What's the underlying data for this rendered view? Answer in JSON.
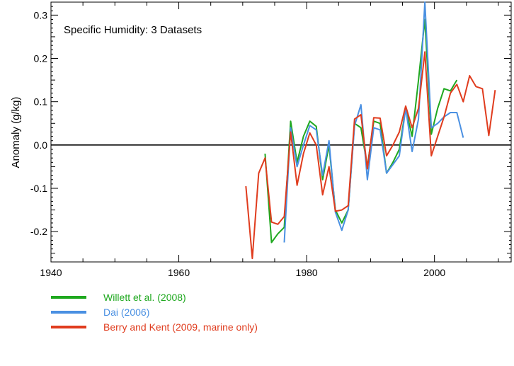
{
  "chart_data": {
    "type": "line",
    "title": "Specific Humidity: 3 Datasets",
    "xlabel": "",
    "ylabel": "Anomaly (g/kg)",
    "xlim": [
      1940,
      2012
    ],
    "ylim": [
      -0.27,
      0.33
    ],
    "xticks": [
      1940,
      1960,
      1980,
      2000
    ],
    "yticks": [
      -0.2,
      -0.1,
      0.0,
      0.1,
      0.2,
      0.3
    ],
    "ytick_labels": [
      "-0.2",
      "-0.1",
      "0.0",
      "0.1",
      "0.2",
      "0.3"
    ],
    "zero_line": true,
    "grid": false,
    "series": [
      {
        "name": "Willett et al. (2008)",
        "color": "#1fa81f",
        "x": [
          1973.5,
          1974.5,
          1975.5,
          1976.5,
          1977.5,
          1978.5,
          1979.5,
          1980.5,
          1981.5,
          1982.5,
          1983.5,
          1984.5,
          1985.5,
          1986.5,
          1987.5,
          1988.5,
          1989.5,
          1990.5,
          1991.5,
          1992.5,
          1993.5,
          1994.5,
          1995.5,
          1996.5,
          1997.5,
          1998.5,
          1999.5,
          2000.5,
          2001.5,
          2002.5,
          2003.5
        ],
        "y": [
          -0.02,
          -0.225,
          -0.205,
          -0.19,
          0.055,
          -0.04,
          0.02,
          0.055,
          0.043,
          -0.08,
          0.0,
          -0.15,
          -0.18,
          -0.15,
          0.05,
          0.04,
          -0.05,
          0.055,
          0.05,
          -0.065,
          -0.04,
          -0.01,
          0.085,
          0.02,
          0.15,
          0.29,
          0.025,
          0.085,
          0.13,
          0.125,
          0.15
        ]
      },
      {
        "name": "Dai (2006)",
        "color": "#4a90e2",
        "x": [
          1976.5,
          1977.5,
          1978.5,
          1979.5,
          1980.5,
          1981.5,
          1982.5,
          1983.5,
          1984.5,
          1985.5,
          1986.5,
          1987.5,
          1988.5,
          1989.5,
          1990.5,
          1991.5,
          1992.5,
          1993.5,
          1994.5,
          1995.5,
          1996.5,
          1997.5,
          1998.5,
          1999.5,
          2000.5,
          2001.5,
          2002.5,
          2003.5,
          2004.5
        ],
        "y": [
          -0.225,
          0.04,
          -0.05,
          0.0,
          0.045,
          0.035,
          -0.07,
          0.01,
          -0.155,
          -0.197,
          -0.15,
          0.045,
          0.093,
          -0.08,
          0.04,
          0.035,
          -0.065,
          -0.045,
          -0.025,
          0.085,
          -0.015,
          0.06,
          0.33,
          0.04,
          0.05,
          0.065,
          0.075,
          0.075,
          0.017
        ]
      },
      {
        "name": "Berry and Kent (2009, marine only)",
        "color": "#e03c1e",
        "x": [
          1970.5,
          1971.5,
          1972.5,
          1973.5,
          1974.5,
          1975.5,
          1976.5,
          1977.5,
          1978.5,
          1979.5,
          1980.5,
          1981.5,
          1982.5,
          1983.5,
          1984.5,
          1985.5,
          1986.5,
          1987.5,
          1988.5,
          1989.5,
          1990.5,
          1991.5,
          1992.5,
          1993.5,
          1994.5,
          1995.5,
          1996.5,
          1997.5,
          1998.5,
          1999.5,
          2000.5,
          2001.5,
          2002.5,
          2003.5,
          2004.5,
          2005.5,
          2006.5,
          2007.5,
          2008.5,
          2009.5
        ],
        "y": [
          -0.095,
          -0.262,
          -0.065,
          -0.03,
          -0.178,
          -0.183,
          -0.165,
          0.03,
          -0.093,
          -0.02,
          0.028,
          0.0,
          -0.115,
          -0.05,
          -0.153,
          -0.15,
          -0.14,
          0.06,
          0.07,
          -0.055,
          0.063,
          0.062,
          -0.025,
          0.0,
          0.03,
          0.09,
          0.04,
          0.085,
          0.215,
          -0.025,
          0.02,
          0.065,
          0.12,
          0.14,
          0.1,
          0.16,
          0.135,
          0.13,
          0.022,
          0.127
        ]
      }
    ]
  }
}
